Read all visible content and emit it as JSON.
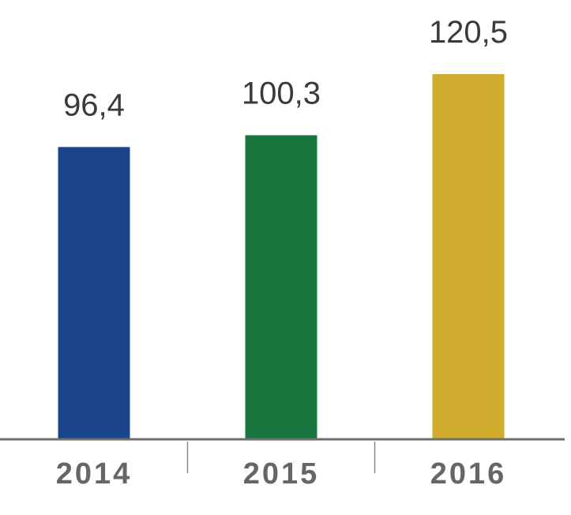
{
  "chart_data": {
    "type": "bar",
    "categories": [
      "2014",
      "2015",
      "2016"
    ],
    "values": [
      96.4,
      100.3,
      120.5
    ],
    "value_labels": [
      "96,4",
      "100,3",
      "120,5"
    ],
    "colors": [
      "#1b4589",
      "#1b753f",
      "#d1ab2d"
    ],
    "title": "",
    "xlabel": "",
    "ylabel": "",
    "ylim": [
      0,
      120.5
    ],
    "grid": false,
    "legend": "none"
  }
}
